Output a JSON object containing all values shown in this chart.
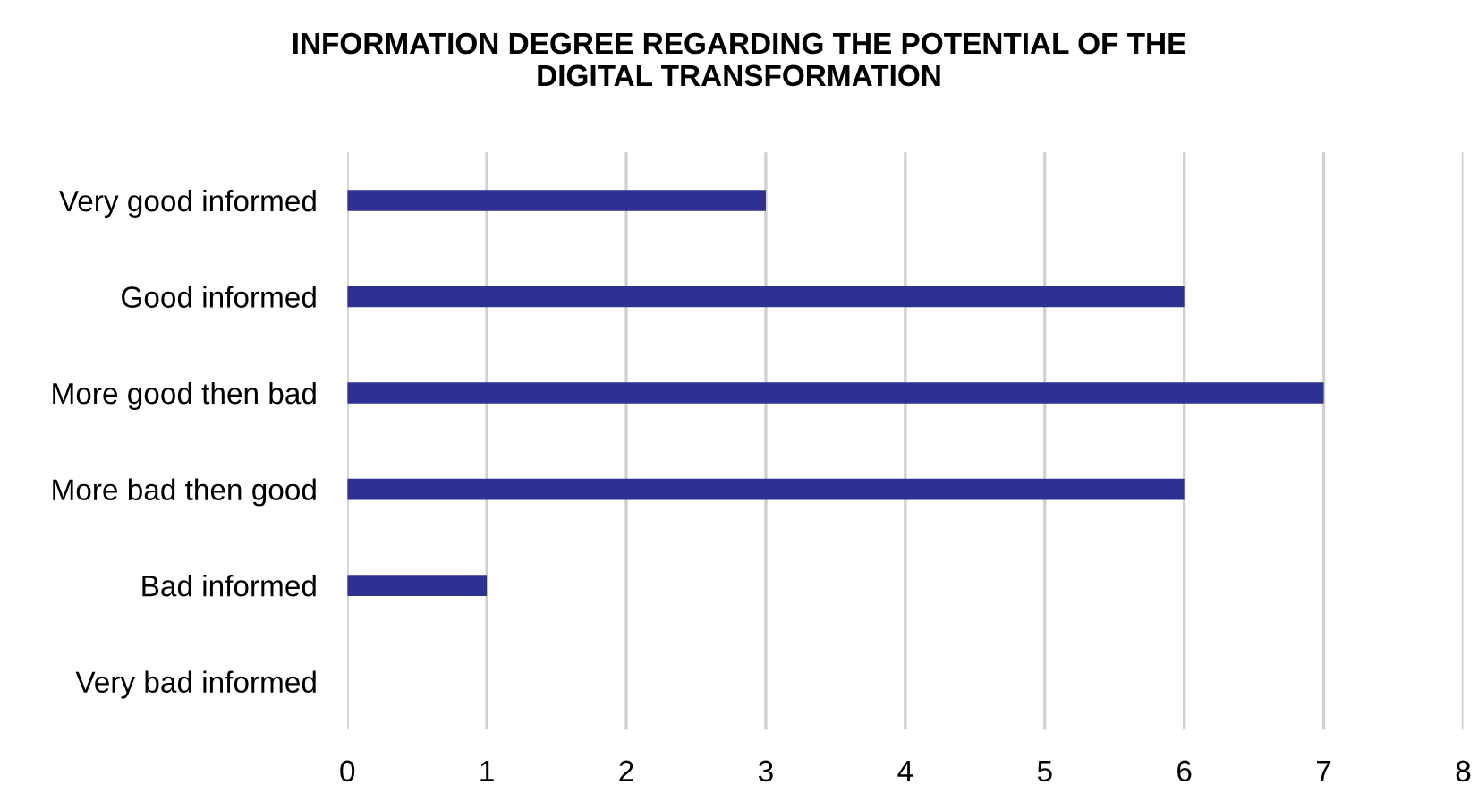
{
  "chart_data": {
    "type": "bar",
    "orientation": "horizontal",
    "title": "INFORMATION DEGREE REGARDING THE POTENTIAL OF THE\nDIGITAL TRANSFORMATION",
    "categories": [
      "Very good informed",
      "Good informed",
      "More good then bad",
      "More bad then good",
      "Bad informed",
      "Very bad informed"
    ],
    "values": [
      3,
      6,
      7,
      6,
      1,
      0
    ],
    "color": "#2e3192",
    "xlim": [
      0,
      8
    ],
    "xticks": [
      0,
      1,
      2,
      3,
      4,
      5,
      6,
      7,
      8
    ],
    "grid": "x"
  }
}
